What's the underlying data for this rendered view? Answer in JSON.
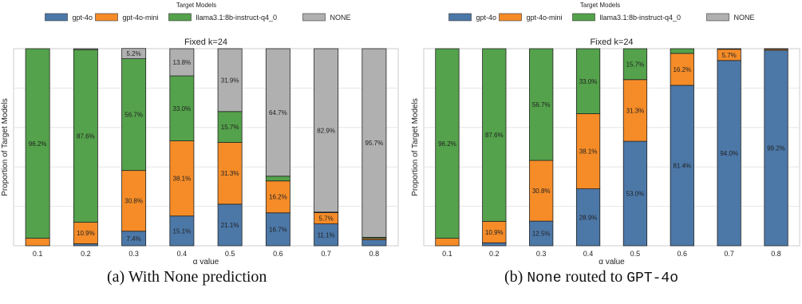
{
  "colors": {
    "gpt-4o": "#4c78a8",
    "gpt-4o-mini": "#f58c28",
    "llama": "#54a24b",
    "none": "#b0b0b0"
  },
  "legend": {
    "title": "Target Models",
    "items": [
      {
        "label": "gpt-4o",
        "color_key": "gpt-4o"
      },
      {
        "label": "gpt-4o-mini",
        "color_key": "gpt-4o-mini"
      },
      {
        "label": "llama3.1:8b-instruct-q4_0",
        "color_key": "llama"
      },
      {
        "label": "NONE",
        "color_key": "none"
      }
    ]
  },
  "captions": {
    "a": "(a) With None prediction",
    "b_prefix": "(b)",
    "b_none": "None",
    "b_mid": "routed to",
    "b_model": "GPT-4o"
  },
  "chart_data": [
    {
      "type": "bar",
      "stacked": true,
      "title": "Fixed k=24",
      "xlabel": "α value",
      "ylabel": "Proportion of Target Models",
      "ylim": [
        0,
        1
      ],
      "grid": true,
      "categories": [
        "0.1",
        "0.2",
        "0.3",
        "0.4",
        "0.5",
        "0.6",
        "0.7",
        "0.8"
      ],
      "series": [
        {
          "name": "gpt-4o",
          "color_key": "gpt-4o",
          "values": [
            0.0,
            0.01,
            0.074,
            0.151,
            0.211,
            0.167,
            0.111,
            0.03
          ],
          "labels": [
            "",
            "",
            "7.4%",
            "15.1%",
            "21.1%",
            "16.7%",
            "11.1%",
            ""
          ]
        },
        {
          "name": "gpt-4o-mini",
          "color_key": "gpt-4o-mini",
          "values": [
            0.038,
            0.109,
            0.308,
            0.381,
            0.313,
            0.162,
            0.057,
            0.007
          ],
          "labels": [
            "",
            "10.9%",
            "30.8%",
            "38.1%",
            "31.3%",
            "16.2%",
            "5.7%",
            ""
          ]
        },
        {
          "name": "llama3.1:8b-instruct-q4_0",
          "color_key": "llama",
          "values": [
            0.962,
            0.876,
            0.567,
            0.33,
            0.157,
            0.024,
            0.003,
            0.006
          ],
          "labels": [
            "96.2%",
            "87.6%",
            "56.7%",
            "33.0%",
            "15.7%",
            "",
            "",
            ""
          ]
        },
        {
          "name": "NONE",
          "color_key": "none",
          "values": [
            0.0,
            0.005,
            0.052,
            0.138,
            0.319,
            0.647,
            0.829,
            0.957
          ],
          "labels": [
            "",
            "",
            "5.2%",
            "13.8%",
            "31.9%",
            "64.7%",
            "82.9%",
            "95.7%"
          ]
        }
      ]
    },
    {
      "type": "bar",
      "stacked": true,
      "title": "Fixed k=24",
      "xlabel": "α value",
      "ylabel": "Proportion of Target Models",
      "ylim": [
        0,
        1
      ],
      "grid": true,
      "categories": [
        "0.1",
        "0.2",
        "0.3",
        "0.4",
        "0.5",
        "0.6",
        "0.7",
        "0.8"
      ],
      "series": [
        {
          "name": "gpt-4o",
          "color_key": "gpt-4o",
          "values": [
            0.0,
            0.015,
            0.125,
            0.289,
            0.53,
            0.814,
            0.94,
            0.992
          ],
          "labels": [
            "",
            "",
            "12.5%",
            "28.9%",
            "53.0%",
            "81.4%",
            "94.0%",
            "99.2%"
          ]
        },
        {
          "name": "gpt-4o-mini",
          "color_key": "gpt-4o-mini",
          "values": [
            0.038,
            0.109,
            0.308,
            0.381,
            0.313,
            0.162,
            0.057,
            0.006
          ],
          "labels": [
            "",
            "10.9%",
            "30.8%",
            "38.1%",
            "31.3%",
            "16.2%",
            "5.7%",
            ""
          ]
        },
        {
          "name": "llama3.1:8b-instruct-q4_0",
          "color_key": "llama",
          "values": [
            0.962,
            0.876,
            0.567,
            0.33,
            0.157,
            0.024,
            0.003,
            0.002
          ],
          "labels": [
            "96.2%",
            "87.6%",
            "56.7%",
            "33.0%",
            "15.7%",
            "",
            "",
            ""
          ]
        }
      ]
    }
  ]
}
